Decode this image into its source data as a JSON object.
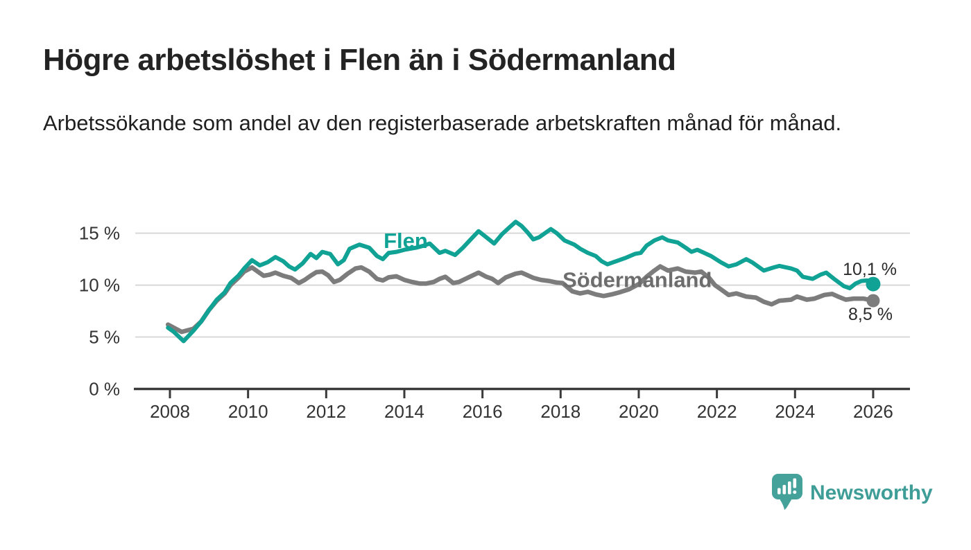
{
  "header": {
    "title": "Högre arbetslöshet i Flen än i Södermanland",
    "subtitle": "Arbetssökande som andel av den registerbaserade arbetskraften månad för månad."
  },
  "chart_data": {
    "type": "line",
    "x_label": "",
    "y_label": "",
    "x_range": [
      2007.9,
      2026.3
    ],
    "y_range": [
      0,
      17
    ],
    "grid": "horizontal",
    "y_ticks": [
      {
        "value": 0,
        "label": "0 %"
      },
      {
        "value": 5,
        "label": "5 %"
      },
      {
        "value": 10,
        "label": "10 %"
      },
      {
        "value": 15,
        "label": "15 %"
      }
    ],
    "x_ticks": [
      {
        "value": 2008,
        "label": "2008"
      },
      {
        "value": 2010,
        "label": "2010"
      },
      {
        "value": 2012,
        "label": "2012"
      },
      {
        "value": 2014,
        "label": "2014"
      },
      {
        "value": 2016,
        "label": "2016"
      },
      {
        "value": 2018,
        "label": "2018"
      },
      {
        "value": 2020,
        "label": "2020"
      },
      {
        "value": 2022,
        "label": "2022"
      },
      {
        "value": 2024,
        "label": "2024"
      },
      {
        "value": 2026,
        "label": "2026"
      }
    ],
    "series": [
      {
        "name": "Södermanland",
        "color": "#7c7c7c",
        "label_color": "#6d6d6d",
        "line_width": 6.5,
        "inline_label": {
          "text": "Södermanland",
          "x": 2018.05,
          "y": 9.8
        },
        "end_value_label": "8,5 %",
        "points": [
          [
            2007.95,
            6.2
          ],
          [
            2008.1,
            5.9
          ],
          [
            2008.3,
            5.5
          ],
          [
            2008.6,
            5.8
          ],
          [
            2008.8,
            6.5
          ],
          [
            2009.0,
            7.6
          ],
          [
            2009.2,
            8.5
          ],
          [
            2009.4,
            9.2
          ],
          [
            2009.55,
            10.0
          ],
          [
            2009.75,
            10.7
          ],
          [
            2009.9,
            11.3
          ],
          [
            2010.1,
            11.7
          ],
          [
            2010.25,
            11.3
          ],
          [
            2010.4,
            10.9
          ],
          [
            2010.55,
            11.0
          ],
          [
            2010.7,
            11.2
          ],
          [
            2010.9,
            10.9
          ],
          [
            2011.1,
            10.7
          ],
          [
            2011.3,
            10.2
          ],
          [
            2011.45,
            10.5
          ],
          [
            2011.6,
            10.9
          ],
          [
            2011.75,
            11.25
          ],
          [
            2011.9,
            11.3
          ],
          [
            2012.05,
            10.95
          ],
          [
            2012.2,
            10.3
          ],
          [
            2012.35,
            10.5
          ],
          [
            2012.55,
            11.1
          ],
          [
            2012.75,
            11.6
          ],
          [
            2012.9,
            11.7
          ],
          [
            2013.1,
            11.3
          ],
          [
            2013.3,
            10.6
          ],
          [
            2013.45,
            10.45
          ],
          [
            2013.6,
            10.75
          ],
          [
            2013.8,
            10.85
          ],
          [
            2014.0,
            10.5
          ],
          [
            2014.2,
            10.3
          ],
          [
            2014.4,
            10.15
          ],
          [
            2014.55,
            10.15
          ],
          [
            2014.75,
            10.3
          ],
          [
            2014.9,
            10.6
          ],
          [
            2015.05,
            10.8
          ],
          [
            2015.25,
            10.2
          ],
          [
            2015.4,
            10.3
          ],
          [
            2015.7,
            10.85
          ],
          [
            2015.9,
            11.2
          ],
          [
            2016.1,
            10.8
          ],
          [
            2016.25,
            10.6
          ],
          [
            2016.4,
            10.2
          ],
          [
            2016.6,
            10.75
          ],
          [
            2016.85,
            11.1
          ],
          [
            2017.0,
            11.2
          ],
          [
            2017.3,
            10.7
          ],
          [
            2017.5,
            10.5
          ],
          [
            2017.7,
            10.4
          ],
          [
            2017.9,
            10.25
          ],
          [
            2018.05,
            10.2
          ],
          [
            2018.3,
            9.4
          ],
          [
            2018.5,
            9.2
          ],
          [
            2018.7,
            9.35
          ],
          [
            2018.9,
            9.1
          ],
          [
            2019.1,
            8.95
          ],
          [
            2019.3,
            9.1
          ],
          [
            2019.5,
            9.3
          ],
          [
            2019.75,
            9.6
          ],
          [
            2020.0,
            10.1
          ],
          [
            2020.2,
            10.8
          ],
          [
            2020.4,
            11.4
          ],
          [
            2020.55,
            11.8
          ],
          [
            2020.75,
            11.4
          ],
          [
            2021.0,
            11.6
          ],
          [
            2021.2,
            11.3
          ],
          [
            2021.45,
            11.2
          ],
          [
            2021.6,
            11.3
          ],
          [
            2021.8,
            10.7
          ],
          [
            2021.95,
            10.0
          ],
          [
            2022.1,
            9.6
          ],
          [
            2022.3,
            9.05
          ],
          [
            2022.5,
            9.2
          ],
          [
            2022.75,
            8.9
          ],
          [
            2023.0,
            8.8
          ],
          [
            2023.2,
            8.4
          ],
          [
            2023.4,
            8.15
          ],
          [
            2023.6,
            8.5
          ],
          [
            2023.9,
            8.6
          ],
          [
            2024.05,
            8.9
          ],
          [
            2024.3,
            8.6
          ],
          [
            2024.5,
            8.7
          ],
          [
            2024.75,
            9.05
          ],
          [
            2024.95,
            9.15
          ],
          [
            2025.1,
            8.9
          ],
          [
            2025.3,
            8.6
          ],
          [
            2025.5,
            8.7
          ],
          [
            2025.75,
            8.7
          ],
          [
            2026.0,
            8.5
          ]
        ]
      },
      {
        "name": "Flen",
        "color": "#10a294",
        "label_color": "#10a294",
        "line_width": 6,
        "inline_label": {
          "text": "Flen",
          "x": 2013.47,
          "y": 13.58
        },
        "end_value_label": "10,1 %",
        "points": [
          [
            2007.95,
            5.9
          ],
          [
            2008.1,
            5.5
          ],
          [
            2008.35,
            4.6
          ],
          [
            2008.6,
            5.6
          ],
          [
            2008.8,
            6.5
          ],
          [
            2009.0,
            7.6
          ],
          [
            2009.2,
            8.6
          ],
          [
            2009.4,
            9.3
          ],
          [
            2009.55,
            10.2
          ],
          [
            2009.75,
            10.9
          ],
          [
            2009.9,
            11.6
          ],
          [
            2010.1,
            12.4
          ],
          [
            2010.3,
            11.9
          ],
          [
            2010.5,
            12.2
          ],
          [
            2010.7,
            12.7
          ],
          [
            2010.9,
            12.3
          ],
          [
            2011.05,
            11.8
          ],
          [
            2011.2,
            11.5
          ],
          [
            2011.4,
            12.1
          ],
          [
            2011.6,
            13.0
          ],
          [
            2011.75,
            12.6
          ],
          [
            2011.9,
            13.2
          ],
          [
            2012.1,
            13.0
          ],
          [
            2012.3,
            12.0
          ],
          [
            2012.45,
            12.4
          ],
          [
            2012.6,
            13.5
          ],
          [
            2012.85,
            13.9
          ],
          [
            2013.1,
            13.6
          ],
          [
            2013.3,
            12.8
          ],
          [
            2013.45,
            12.5
          ],
          [
            2013.6,
            13.1
          ],
          [
            2013.8,
            13.2
          ],
          [
            2014.0,
            13.4
          ],
          [
            2014.3,
            13.6
          ],
          [
            2014.5,
            13.8
          ],
          [
            2014.65,
            14.0
          ],
          [
            2014.9,
            13.1
          ],
          [
            2015.05,
            13.3
          ],
          [
            2015.3,
            12.9
          ],
          [
            2015.5,
            13.6
          ],
          [
            2015.7,
            14.4
          ],
          [
            2015.9,
            15.2
          ],
          [
            2016.1,
            14.6
          ],
          [
            2016.3,
            14.0
          ],
          [
            2016.5,
            14.9
          ],
          [
            2016.7,
            15.6
          ],
          [
            2016.85,
            16.1
          ],
          [
            2017.0,
            15.7
          ],
          [
            2017.15,
            15.1
          ],
          [
            2017.3,
            14.4
          ],
          [
            2017.45,
            14.6
          ],
          [
            2017.6,
            15.0
          ],
          [
            2017.75,
            15.4
          ],
          [
            2017.9,
            15.0
          ],
          [
            2018.1,
            14.3
          ],
          [
            2018.35,
            13.9
          ],
          [
            2018.5,
            13.5
          ],
          [
            2018.7,
            13.1
          ],
          [
            2018.9,
            12.8
          ],
          [
            2019.05,
            12.3
          ],
          [
            2019.2,
            12.0
          ],
          [
            2019.35,
            12.2
          ],
          [
            2019.5,
            12.4
          ],
          [
            2019.65,
            12.6
          ],
          [
            2019.9,
            13.0
          ],
          [
            2020.05,
            13.1
          ],
          [
            2020.2,
            13.8
          ],
          [
            2020.4,
            14.3
          ],
          [
            2020.6,
            14.6
          ],
          [
            2020.75,
            14.3
          ],
          [
            2021.0,
            14.1
          ],
          [
            2021.2,
            13.6
          ],
          [
            2021.35,
            13.2
          ],
          [
            2021.5,
            13.4
          ],
          [
            2021.85,
            12.8
          ],
          [
            2022.1,
            12.2
          ],
          [
            2022.3,
            11.8
          ],
          [
            2022.5,
            12.0
          ],
          [
            2022.75,
            12.5
          ],
          [
            2022.9,
            12.2
          ],
          [
            2023.2,
            11.4
          ],
          [
            2023.45,
            11.7
          ],
          [
            2023.6,
            11.85
          ],
          [
            2023.9,
            11.6
          ],
          [
            2024.05,
            11.4
          ],
          [
            2024.2,
            10.8
          ],
          [
            2024.45,
            10.6
          ],
          [
            2024.65,
            11.0
          ],
          [
            2024.8,
            11.2
          ],
          [
            2025.0,
            10.6
          ],
          [
            2025.25,
            9.9
          ],
          [
            2025.4,
            9.7
          ],
          [
            2025.55,
            10.15
          ],
          [
            2025.7,
            10.4
          ],
          [
            2025.85,
            10.45
          ],
          [
            2026.0,
            10.1
          ]
        ]
      }
    ],
    "colors": {
      "gridline": "#d8d8d8",
      "axis": "#3a3a3a",
      "tick_label": "#333333",
      "value_label": "#2b2b2b"
    }
  },
  "footer": {
    "brand": "Newsworthy",
    "logo_color": "#3f9d97"
  }
}
